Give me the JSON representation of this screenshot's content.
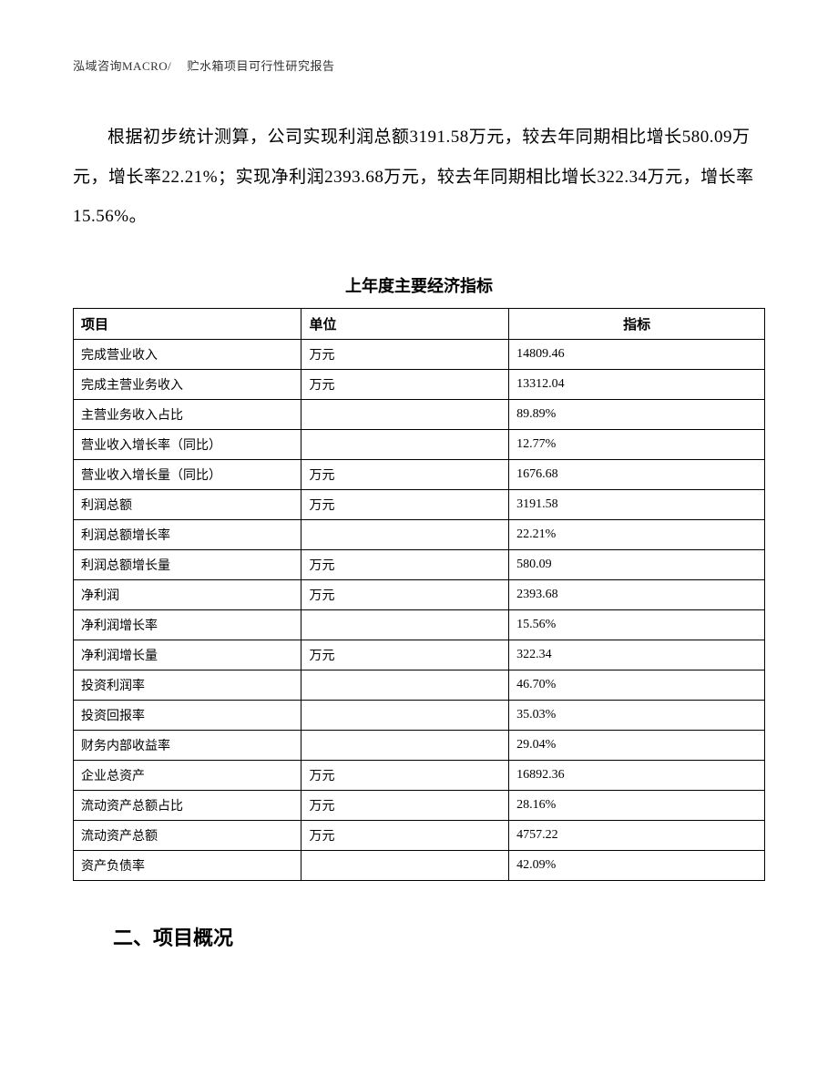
{
  "header": {
    "text": "泓域咨询MACRO/　 贮水箱项目可行性研究报告"
  },
  "paragraph": {
    "text": "根据初步统计测算，公司实现利润总额3191.58万元，较去年同期相比增长580.09万元，增长率22.21%；实现净利润2393.68万元，较去年同期相比增长322.34万元，增长率15.56%。"
  },
  "table": {
    "title": "上年度主要经济指标",
    "columns": [
      "项目",
      "单位",
      "指标"
    ],
    "rows": [
      [
        "完成营业收入",
        "万元",
        "14809.46"
      ],
      [
        "完成主营业务收入",
        "万元",
        "13312.04"
      ],
      [
        "主营业务收入占比",
        "",
        "89.89%"
      ],
      [
        "营业收入增长率（同比）",
        "",
        "12.77%"
      ],
      [
        "营业收入增长量（同比）",
        "万元",
        "1676.68"
      ],
      [
        "利润总额",
        "万元",
        "3191.58"
      ],
      [
        "利润总额增长率",
        "",
        "22.21%"
      ],
      [
        "利润总额增长量",
        "万元",
        "580.09"
      ],
      [
        "净利润",
        "万元",
        "2393.68"
      ],
      [
        "净利润增长率",
        "",
        "15.56%"
      ],
      [
        "净利润增长量",
        "万元",
        "322.34"
      ],
      [
        "投资利润率",
        "",
        "46.70%"
      ],
      [
        "投资回报率",
        "",
        "35.03%"
      ],
      [
        "财务内部收益率",
        "",
        "29.04%"
      ],
      [
        "企业总资产",
        "万元",
        "16892.36"
      ],
      [
        "流动资产总额占比",
        "万元",
        "28.16%"
      ],
      [
        "流动资产总额",
        "万元",
        "4757.22"
      ],
      [
        "资产负债率",
        "",
        "42.09%"
      ]
    ]
  },
  "section_heading": {
    "text": "二、项目概况"
  }
}
